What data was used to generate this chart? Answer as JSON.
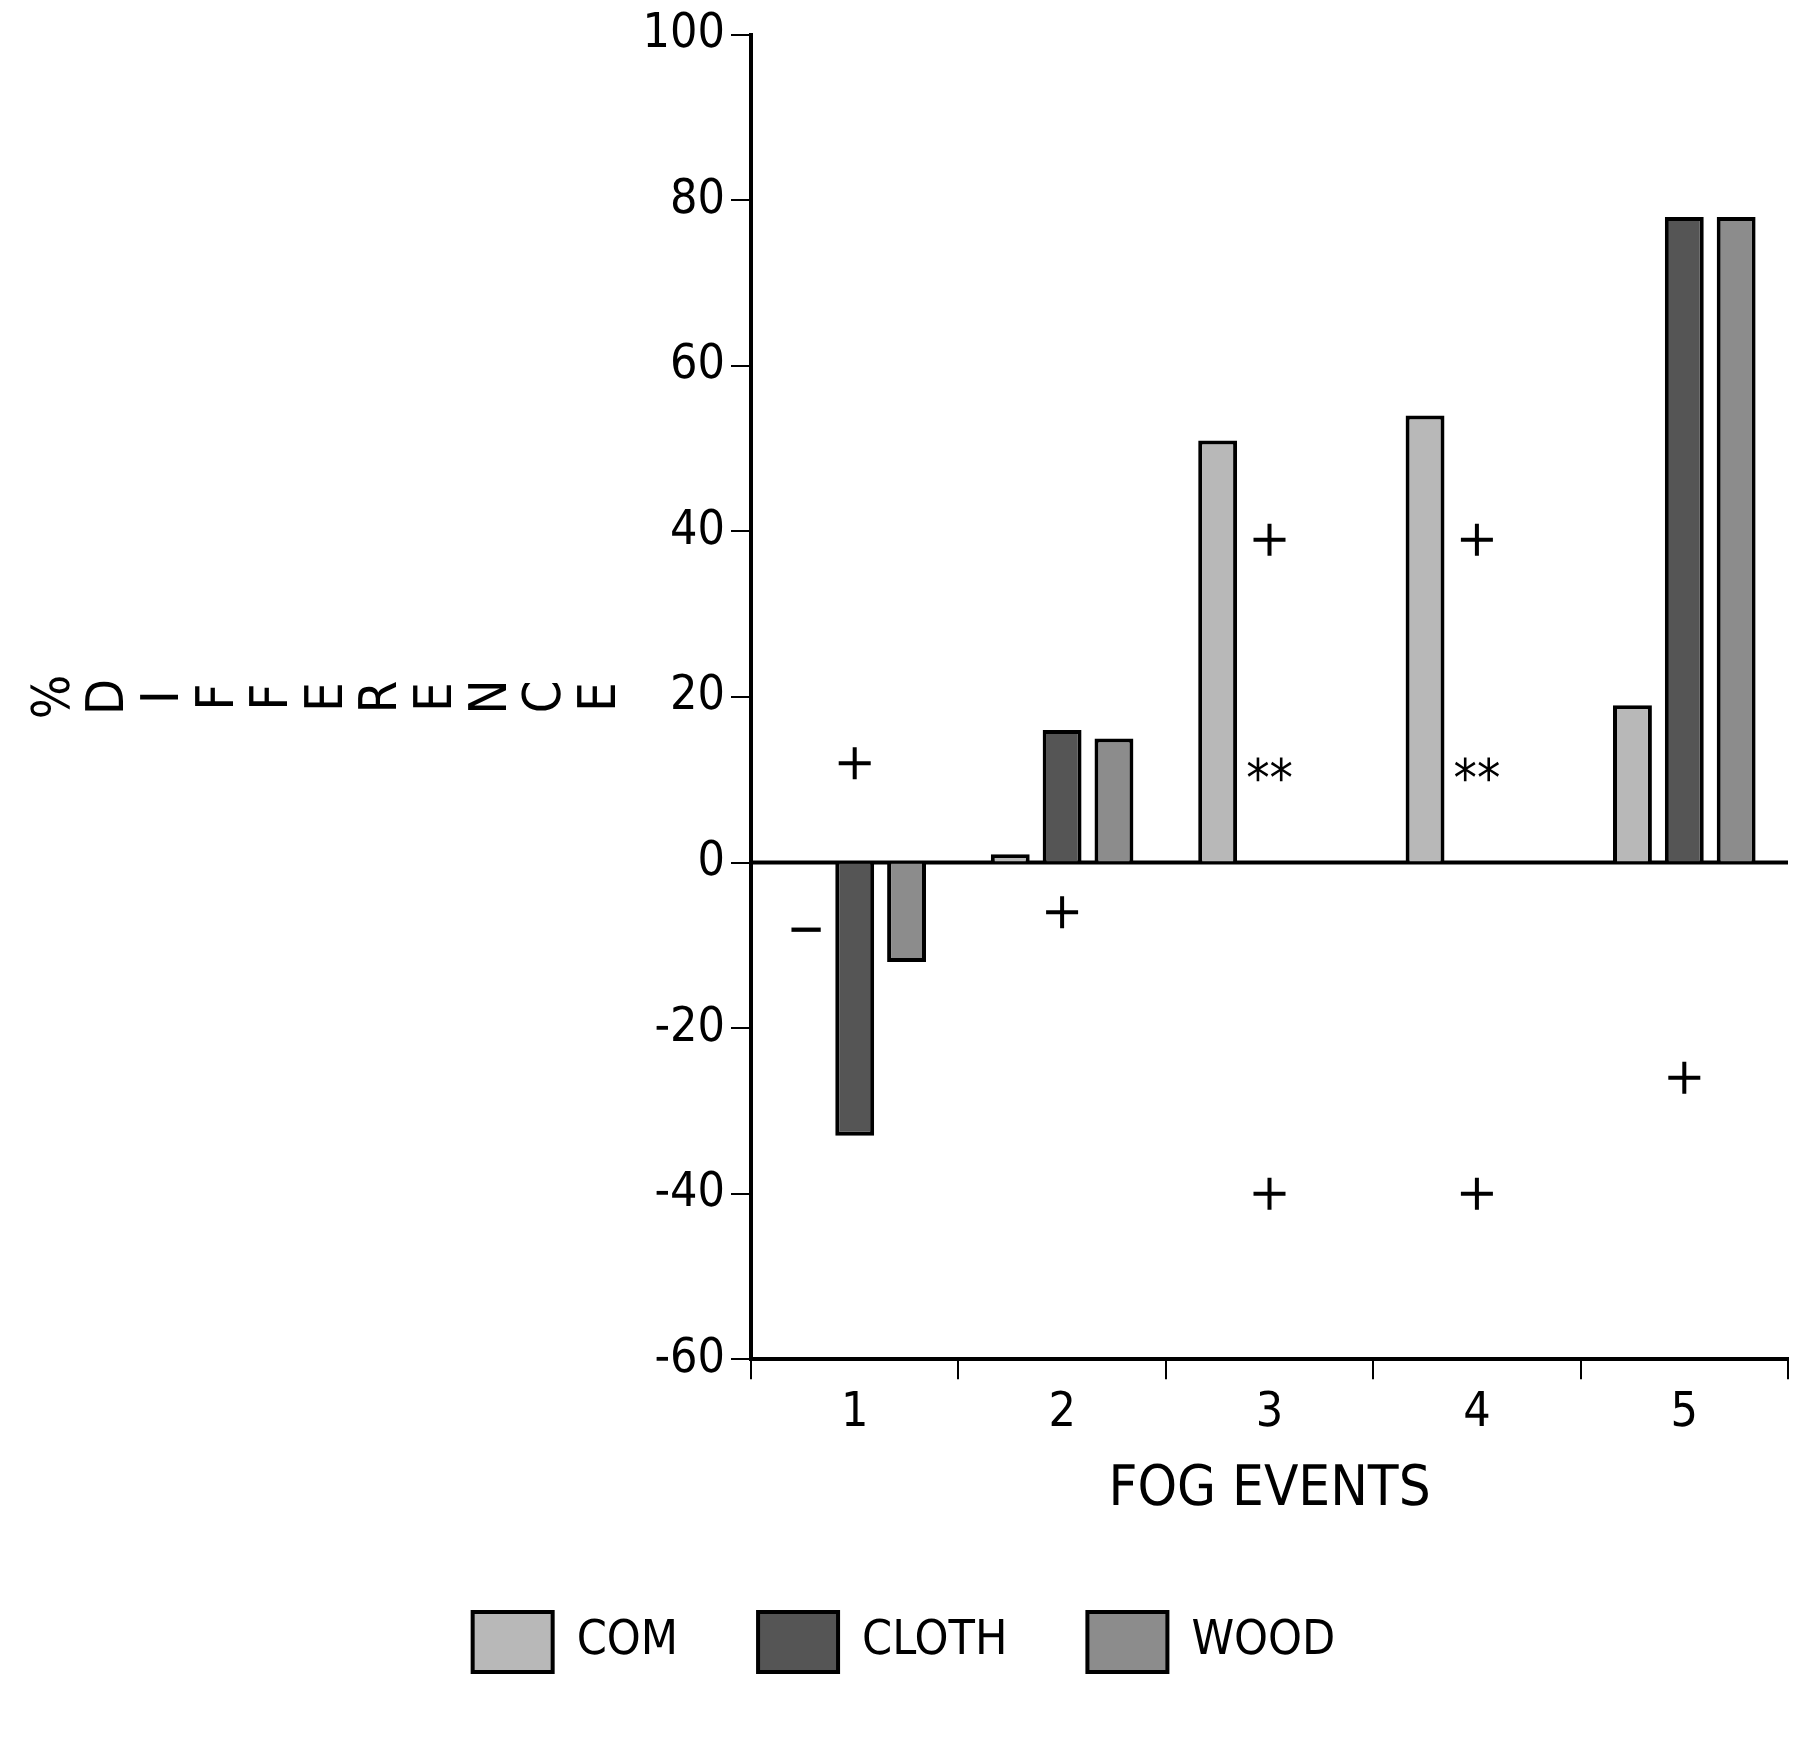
{
  "chart_data": {
    "type": "bar",
    "xlabel": "FOG EVENTS",
    "ylabel": "% DIFFERENCE",
    "categories": [
      "1",
      "2",
      "3",
      "4",
      "5"
    ],
    "series": [
      {
        "name": "COM",
        "color": "#b8b8b8",
        "values": [
          null,
          1,
          51,
          54,
          19
        ]
      },
      {
        "name": "CLOTH",
        "color": "#555555",
        "values": [
          -33,
          16,
          null,
          null,
          78
        ]
      },
      {
        "name": "WOOD",
        "color": "#8c8c8c",
        "values": [
          -12,
          15,
          null,
          null,
          78
        ]
      },
      {
        "type": "scatter",
        "color": "#000000",
        "x": [
          "1",
          "2",
          "3",
          "3",
          "4",
          "4",
          "5"
        ],
        "values": [
          12,
          -6,
          39,
          -40,
          39,
          -40,
          -26
        ]
      }
    ],
    "marker": "cross",
    "ylim": [
      -60,
      100
    ],
    "yticks": [
      -60,
      -40,
      -20,
      0,
      20,
      40,
      60,
      80,
      100
    ],
    "grid": false,
    "legend": "bottom",
    "ref_lines": [
      {
        "axis": "y",
        "value": 0,
        "color": "#000000"
      }
    ],
    "annotations": [
      "−",
      "**",
      "**"
    ]
  }
}
